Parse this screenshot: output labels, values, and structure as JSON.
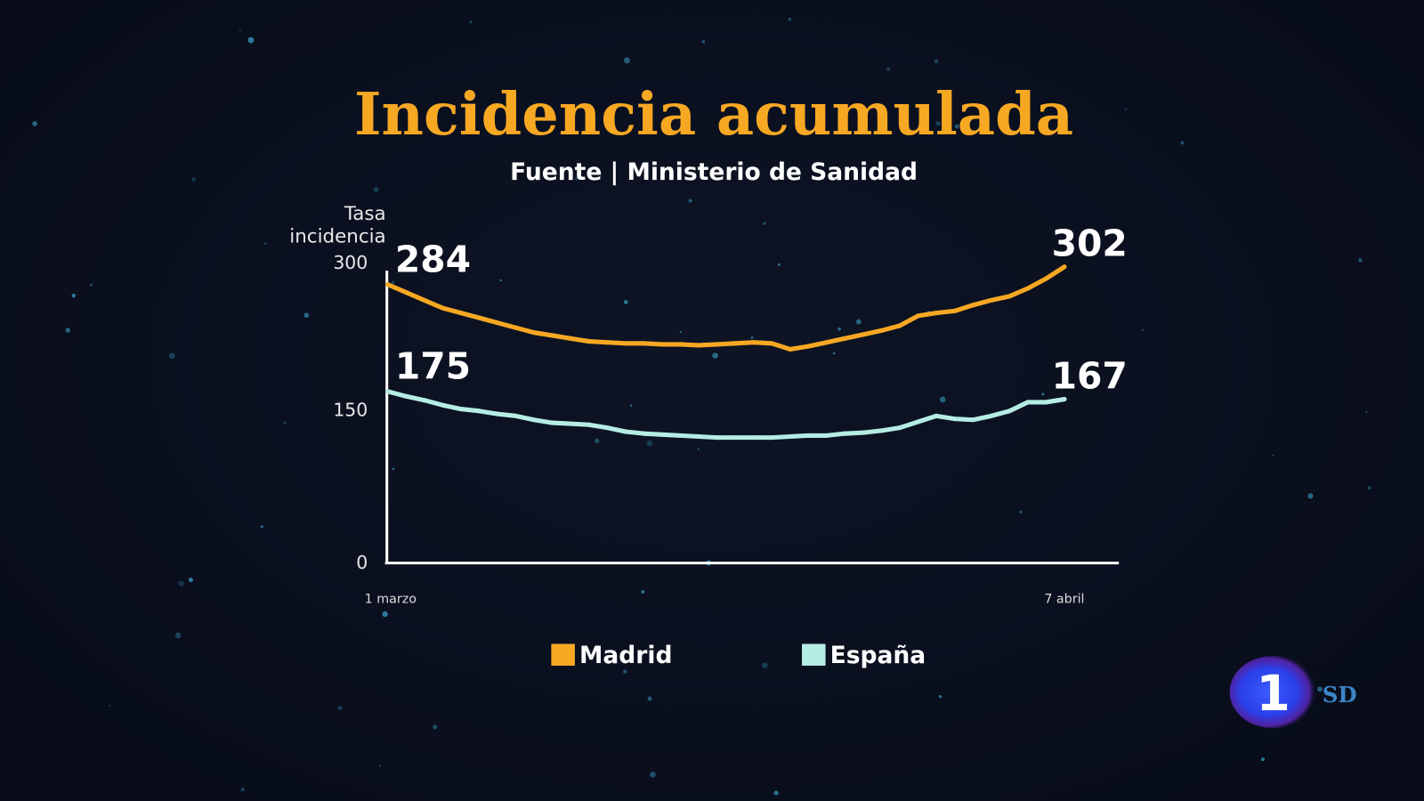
{
  "chart_data": {
    "type": "line",
    "title": "Incidencia acumulada",
    "subtitle": "Fuente | Ministerio de Sanidad",
    "ylabel": [
      "Tasa",
      "incidencia"
    ],
    "ylim": [
      0,
      300
    ],
    "yticks": [
      0,
      150,
      300
    ],
    "ytick_labels": [
      "0",
      "150",
      "300"
    ],
    "x_start_label": "1 marzo",
    "x_end_label": "7 abril",
    "x_range": [
      "1 marzo",
      "7 abril"
    ],
    "grid": false,
    "legend_position": "bottom",
    "series": [
      {
        "name": "Madrid",
        "color": "#f7a823",
        "start_label": "284",
        "end_label": "302",
        "values": [
          284,
          276,
          268,
          260,
          255,
          250,
          245,
          240,
          235,
          232,
          229,
          226,
          225,
          224,
          224,
          223,
          223,
          222,
          223,
          224,
          225,
          224,
          218,
          221,
          225,
          229,
          233,
          237,
          242,
          252,
          255,
          257,
          263,
          268,
          272,
          280,
          290,
          302
        ]
      },
      {
        "name": "España",
        "color": "#b5ece4",
        "start_label": "175",
        "end_label": "167",
        "values": [
          175,
          170,
          166,
          161,
          157,
          155,
          152,
          150,
          146,
          143,
          142,
          141,
          138,
          134,
          132,
          131,
          130,
          129,
          128,
          128,
          128,
          128,
          129,
          130,
          130,
          132,
          133,
          135,
          138,
          144,
          150,
          147,
          146,
          150,
          155,
          164,
          164,
          167
        ]
      }
    ]
  },
  "logo": {
    "channel": "1",
    "quality": "SD"
  },
  "colors": {
    "title": "#f7a823",
    "background": "#0a0f1e",
    "axis": "#ffffff"
  }
}
